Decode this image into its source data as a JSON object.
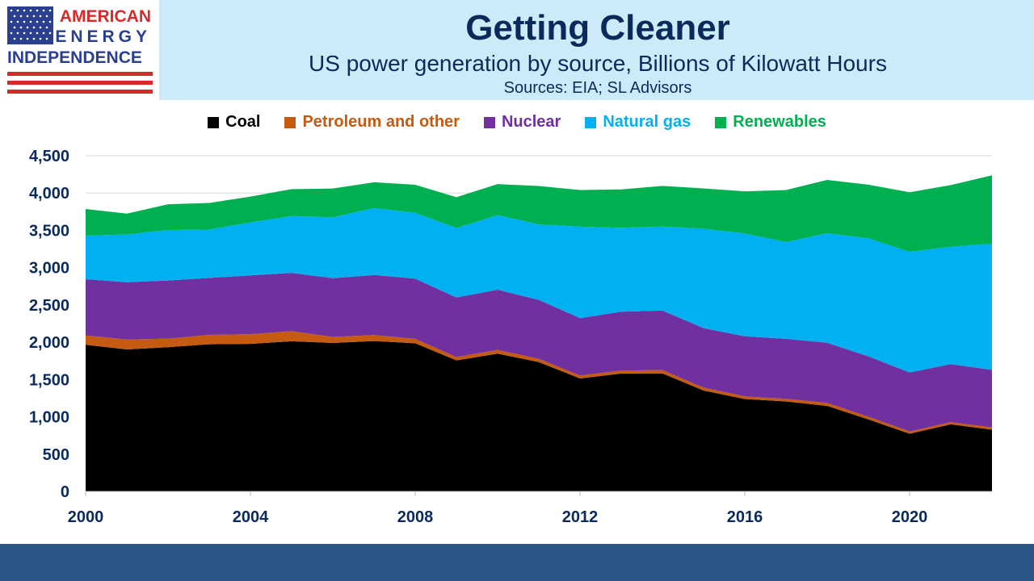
{
  "header": {
    "logo_line1": "AMERICAN",
    "logo_line2": "ENERGY",
    "logo_line3": "INDEPENDENCE",
    "title": "Getting Cleaner",
    "subtitle": "US power generation by source, Billions of Kilowatt Hours",
    "sources": "Sources: EIA; SL Advisors"
  },
  "colors": {
    "header_bg": "#cdeaf9",
    "title": "#0b2a5c",
    "footer_band": "#2b5686",
    "logo_red": "#d62b2b",
    "logo_blue": "#2a3f8f"
  },
  "chart_data": {
    "type": "area",
    "stacked": true,
    "x": [
      2000,
      2001,
      2002,
      2003,
      2004,
      2005,
      2006,
      2007,
      2008,
      2009,
      2010,
      2011,
      2012,
      2013,
      2014,
      2015,
      2016,
      2017,
      2018,
      2019,
      2020,
      2021,
      2022
    ],
    "x_ticks": [
      "2000",
      "2004",
      "2008",
      "2012",
      "2016",
      "2020"
    ],
    "y_ticks": [
      "0",
      "500",
      "1,000",
      "1,500",
      "2,000",
      "2,500",
      "3,000",
      "3,500",
      "4,000",
      "4,500"
    ],
    "ylim": [
      0,
      4500
    ],
    "grid": true,
    "legend_position": "top",
    "series": [
      {
        "name": "Coal",
        "color": "#000000",
        "values": [
          1966,
          1904,
          1933,
          1973,
          1978,
          2013,
          1991,
          2016,
          1986,
          1756,
          1847,
          1733,
          1514,
          1581,
          1582,
          1352,
          1239,
          1206,
          1146,
          966,
          774,
          899,
          828
        ]
      },
      {
        "name": "Petroleum and other",
        "color": "#c55a11",
        "values": [
          125,
          132,
          115,
          125,
          130,
          135,
          80,
          80,
          60,
          45,
          50,
          45,
          40,
          40,
          45,
          40,
          35,
          35,
          40,
          35,
          30,
          30,
          30
        ]
      },
      {
        "name": "Nuclear",
        "color": "#7030a0",
        "values": [
          754,
          769,
          780,
          764,
          788,
          782,
          787,
          806,
          806,
          799,
          807,
          790,
          769,
          789,
          797,
          797,
          806,
          805,
          807,
          809,
          790,
          778,
          772
        ]
      },
      {
        "name": "Natural gas",
        "color": "#00b0f0",
        "values": [
          585,
          639,
          677,
          649,
          710,
          761,
          816,
          897,
          883,
          931,
          999,
          1013,
          1226,
          1124,
          1127,
          1333,
          1378,
          1296,
          1469,
          1582,
          1617,
          1575,
          1689
        ]
      },
      {
        "name": "Renewables",
        "color": "#00b050",
        "values": [
          356,
          280,
          344,
          356,
          346,
          361,
          387,
          345,
          376,
          413,
          417,
          513,
          491,
          515,
          545,
          540,
          565,
          698,
          714,
          720,
          800,
          825,
          918
        ]
      }
    ]
  }
}
